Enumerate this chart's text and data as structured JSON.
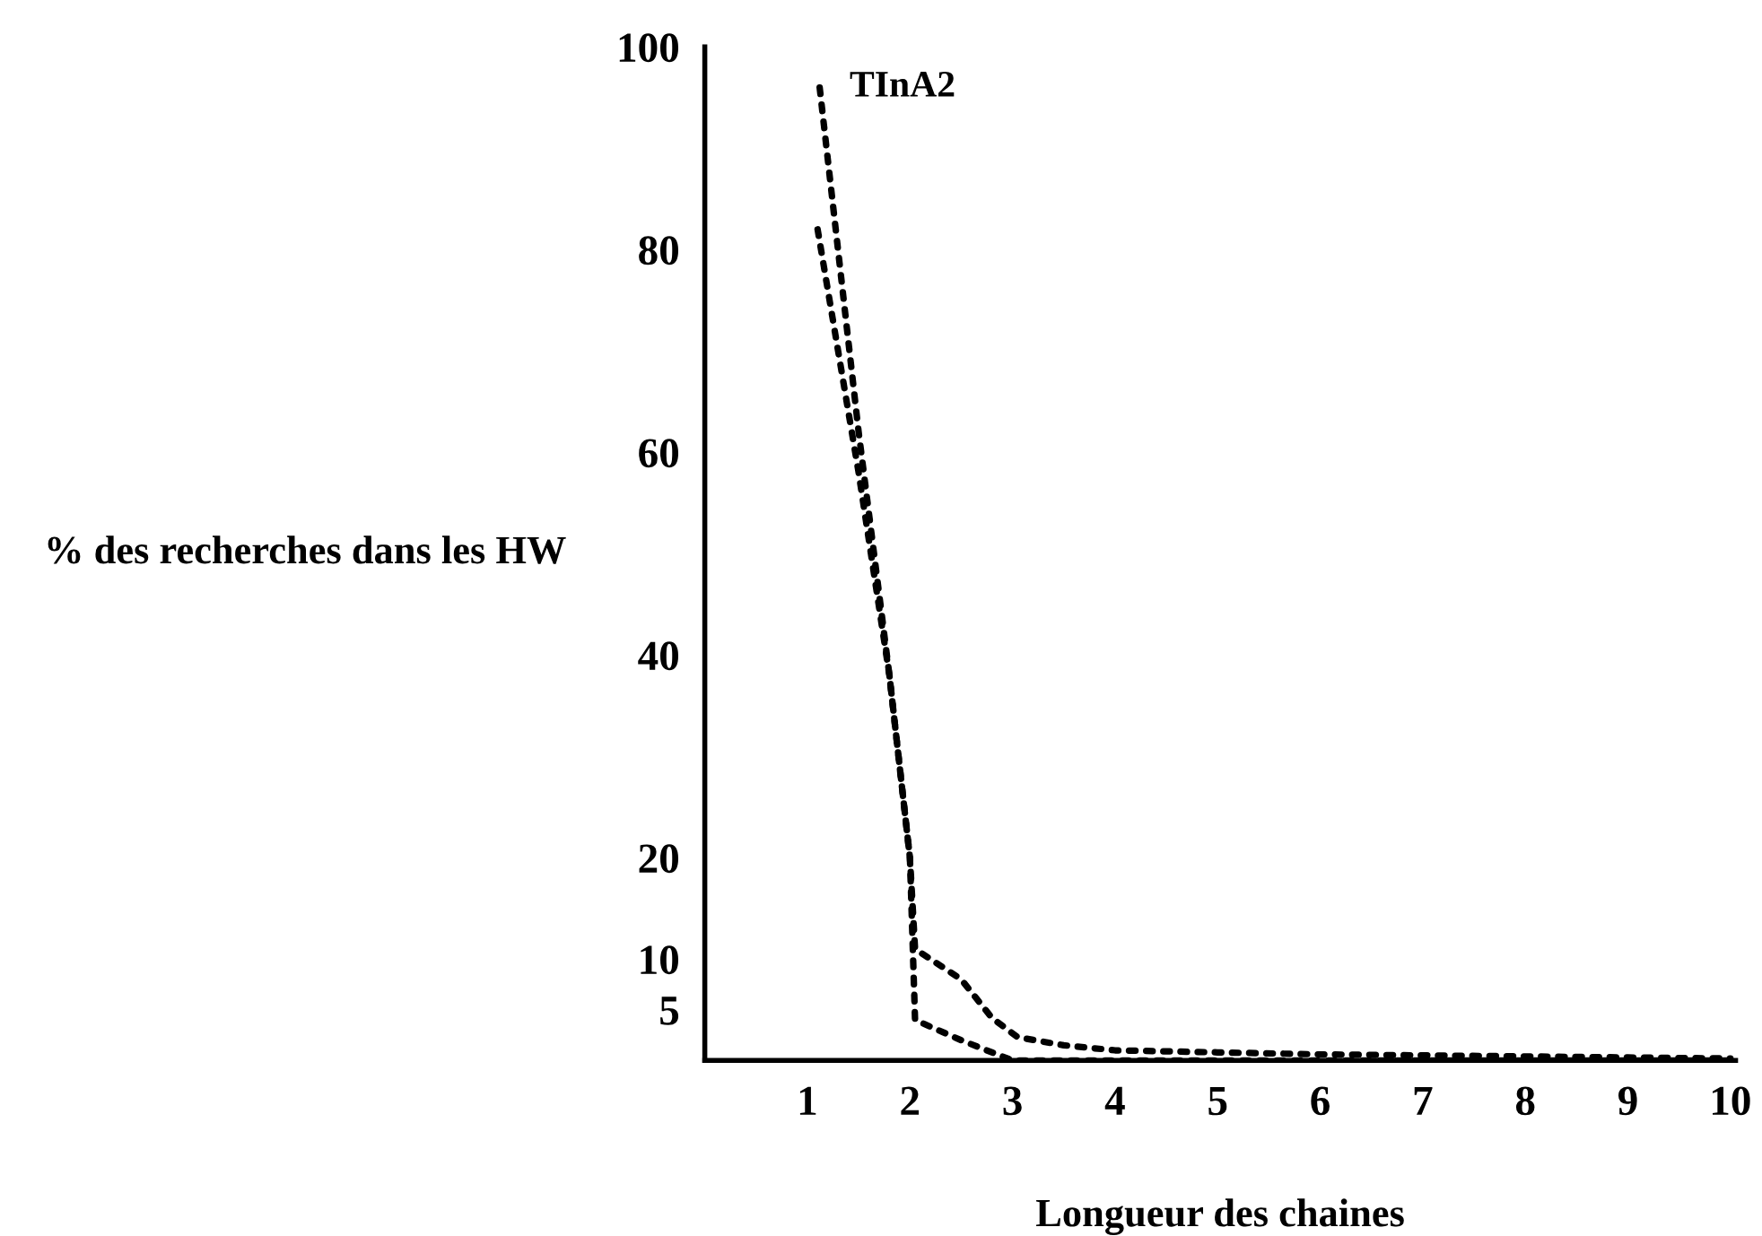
{
  "chart_data": {
    "type": "line",
    "xlabel": "Longueur des chaines",
    "ylabel": "% des recherches dans les HW",
    "xlim": [
      0,
      10.05
    ],
    "xticks": [
      1,
      2,
      3,
      4,
      5,
      6,
      7,
      8,
      9,
      10
    ],
    "ylim": [
      0,
      100
    ],
    "yticks": [
      5,
      10,
      20,
      40,
      60,
      80,
      100
    ],
    "grid": false,
    "legend": false,
    "line_style": "dotted",
    "marker": "none",
    "series": [
      {
        "name": "TInA2",
        "color": "#000000",
        "x": [
          1.12,
          1.5,
          1.8,
          2.0,
          2.05,
          2.5,
          2.8,
          3.05,
          3.5,
          4,
          5,
          6,
          7,
          8,
          9,
          10
        ],
        "values": [
          96,
          62,
          38,
          20,
          11,
          8,
          4.2,
          2.3,
          1.5,
          1,
          0.8,
          0.6,
          0.5,
          0.4,
          0.3,
          0.2
        ]
      },
      {
        "color": "#000000",
        "x": [
          1.1,
          1.5,
          1.8,
          2.0,
          2.05,
          2.5,
          3.0,
          4,
          10
        ],
        "values": [
          82,
          58,
          38,
          20,
          4,
          2,
          0,
          0,
          0
        ]
      }
    ]
  }
}
